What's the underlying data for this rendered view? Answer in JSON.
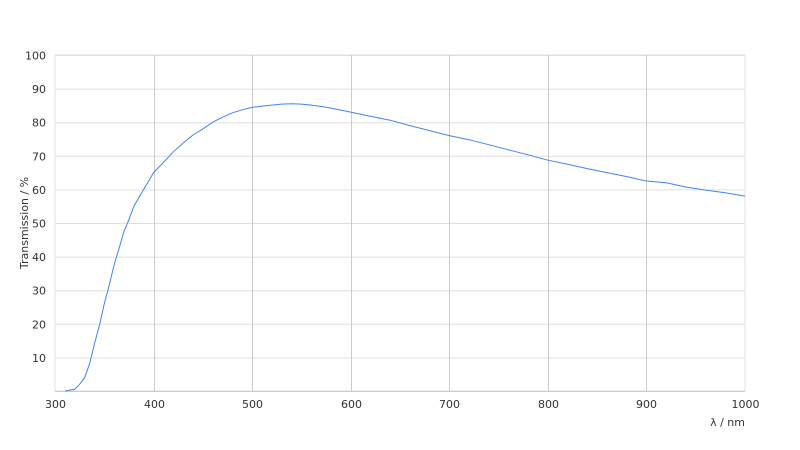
{
  "chart_data": {
    "type": "line",
    "title": "",
    "xlabel": "λ / nm",
    "ylabel": "Transmission / %",
    "xlim": [
      300,
      1000
    ],
    "ylim": [
      0,
      100
    ],
    "xticks": [
      300,
      400,
      500,
      600,
      700,
      800,
      900,
      1000
    ],
    "yticks": [
      10,
      20,
      30,
      40,
      50,
      60,
      70,
      80,
      90,
      100
    ],
    "grid": true,
    "line_color": "#4285f4",
    "series": [
      {
        "x": [
          310,
          320,
          325,
          330,
          335,
          340,
          345,
          350,
          355,
          360,
          365,
          370,
          375,
          380,
          390,
          400,
          410,
          420,
          430,
          440,
          450,
          460,
          470,
          480,
          490,
          500,
          510,
          520,
          530,
          540,
          550,
          560,
          570,
          580,
          590,
          600,
          620,
          640,
          660,
          680,
          700,
          720,
          740,
          760,
          780,
          800,
          820,
          840,
          860,
          880,
          900,
          920,
          940,
          960,
          980,
          1000
        ],
        "y": [
          0,
          0.5,
          2,
          4,
          8,
          14,
          19.5,
          26,
          31.5,
          37.5,
          42.5,
          47.5,
          51,
          55,
          60,
          65,
          68,
          71.2,
          73.8,
          76.2,
          78,
          80,
          81.5,
          82.8,
          83.7,
          84.4,
          84.8,
          85.1,
          85.4,
          85.5,
          85.4,
          85.1,
          84.7,
          84.2,
          83.6,
          83,
          81.8,
          80.6,
          79,
          77.5,
          76,
          74.8,
          73.3,
          71.8,
          70.3,
          68.7,
          67.5,
          66.2,
          65,
          63.8,
          62.5,
          62,
          60.7,
          59.8,
          59,
          58
        ]
      }
    ]
  }
}
